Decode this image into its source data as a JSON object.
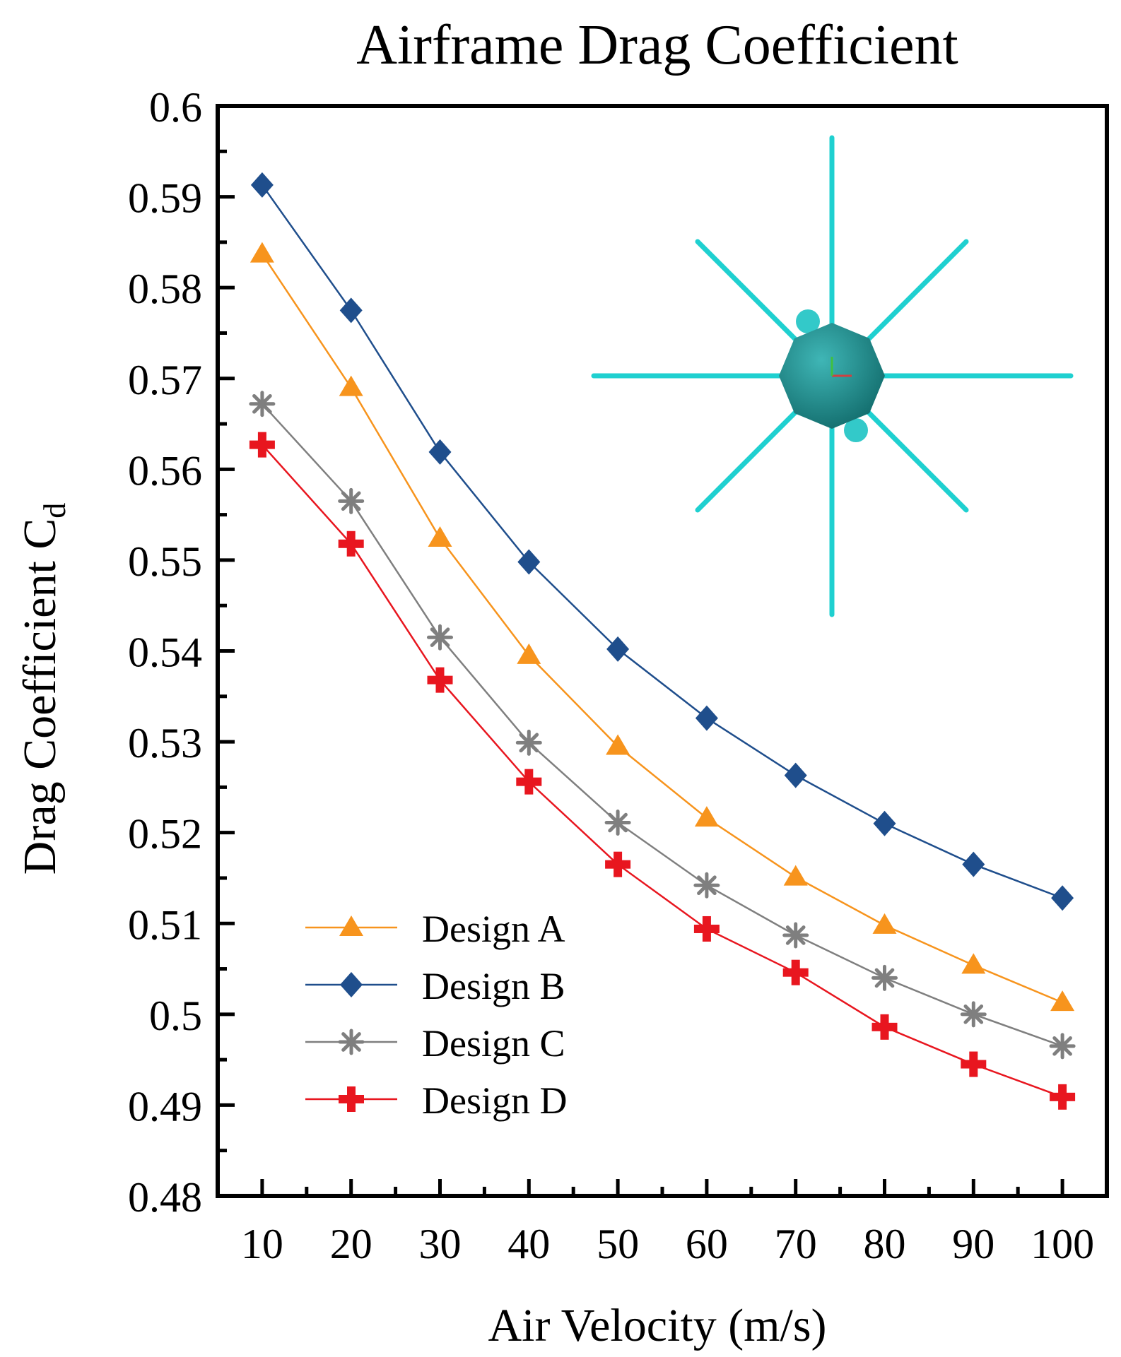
{
  "chart_data": {
    "type": "line",
    "title": "Airframe Drag Coefficient",
    "xlabel": "Air Velocity (m/s)",
    "ylabel": "Drag Coefficient C",
    "ylabel_subscript": "d",
    "x": [
      10,
      20,
      30,
      40,
      50,
      60,
      70,
      80,
      90,
      100
    ],
    "xlim": [
      5,
      105
    ],
    "ylim": [
      0.48,
      0.6
    ],
    "x_ticks": [
      10,
      20,
      30,
      40,
      50,
      60,
      70,
      80,
      90,
      100
    ],
    "y_ticks": [
      0.48,
      0.49,
      0.5,
      0.51,
      0.52,
      0.53,
      0.54,
      0.55,
      0.56,
      0.57,
      0.58,
      0.59,
      0.6
    ],
    "x_tick_labels": [
      "10",
      "20",
      "30",
      "40",
      "50",
      "60",
      "70",
      "80",
      "90",
      "100"
    ],
    "y_tick_labels": [
      "0.48",
      "0.49",
      "0.5",
      "0.51",
      "0.52",
      "0.53",
      "0.54",
      "0.55",
      "0.56",
      "0.57",
      "0.58",
      "0.59",
      "0.6"
    ],
    "grid": false,
    "legend_position": "bottom-left",
    "series": [
      {
        "name": "Design A",
        "color": "#f7941d",
        "marker": "triangle",
        "values": [
          0.5837,
          0.569,
          0.5524,
          0.5395,
          0.5295,
          0.5216,
          0.5151,
          0.5098,
          0.5054,
          0.5013
        ]
      },
      {
        "name": "Design B",
        "color": "#1f4e8c",
        "marker": "diamond",
        "values": [
          0.5913,
          0.5775,
          0.5619,
          0.5498,
          0.5402,
          0.5326,
          0.5263,
          0.521,
          0.5165,
          0.5128
        ]
      },
      {
        "name": "Design C",
        "color": "#7f7f7f",
        "marker": "star",
        "values": [
          0.5672,
          0.5565,
          0.5415,
          0.5299,
          0.5211,
          0.5142,
          0.5087,
          0.504,
          0.5,
          0.4965
        ]
      },
      {
        "name": "Design D",
        "color": "#e8161f",
        "marker": "cross",
        "values": [
          0.5627,
          0.5518,
          0.5368,
          0.5256,
          0.5165,
          0.5094,
          0.5046,
          0.4986,
          0.4945,
          0.4909
        ]
      }
    ],
    "inset": {
      "description_icon": "airframe-top-view-icon",
      "color": "#1fd0d0",
      "body_color": "#1a8c8c"
    }
  }
}
